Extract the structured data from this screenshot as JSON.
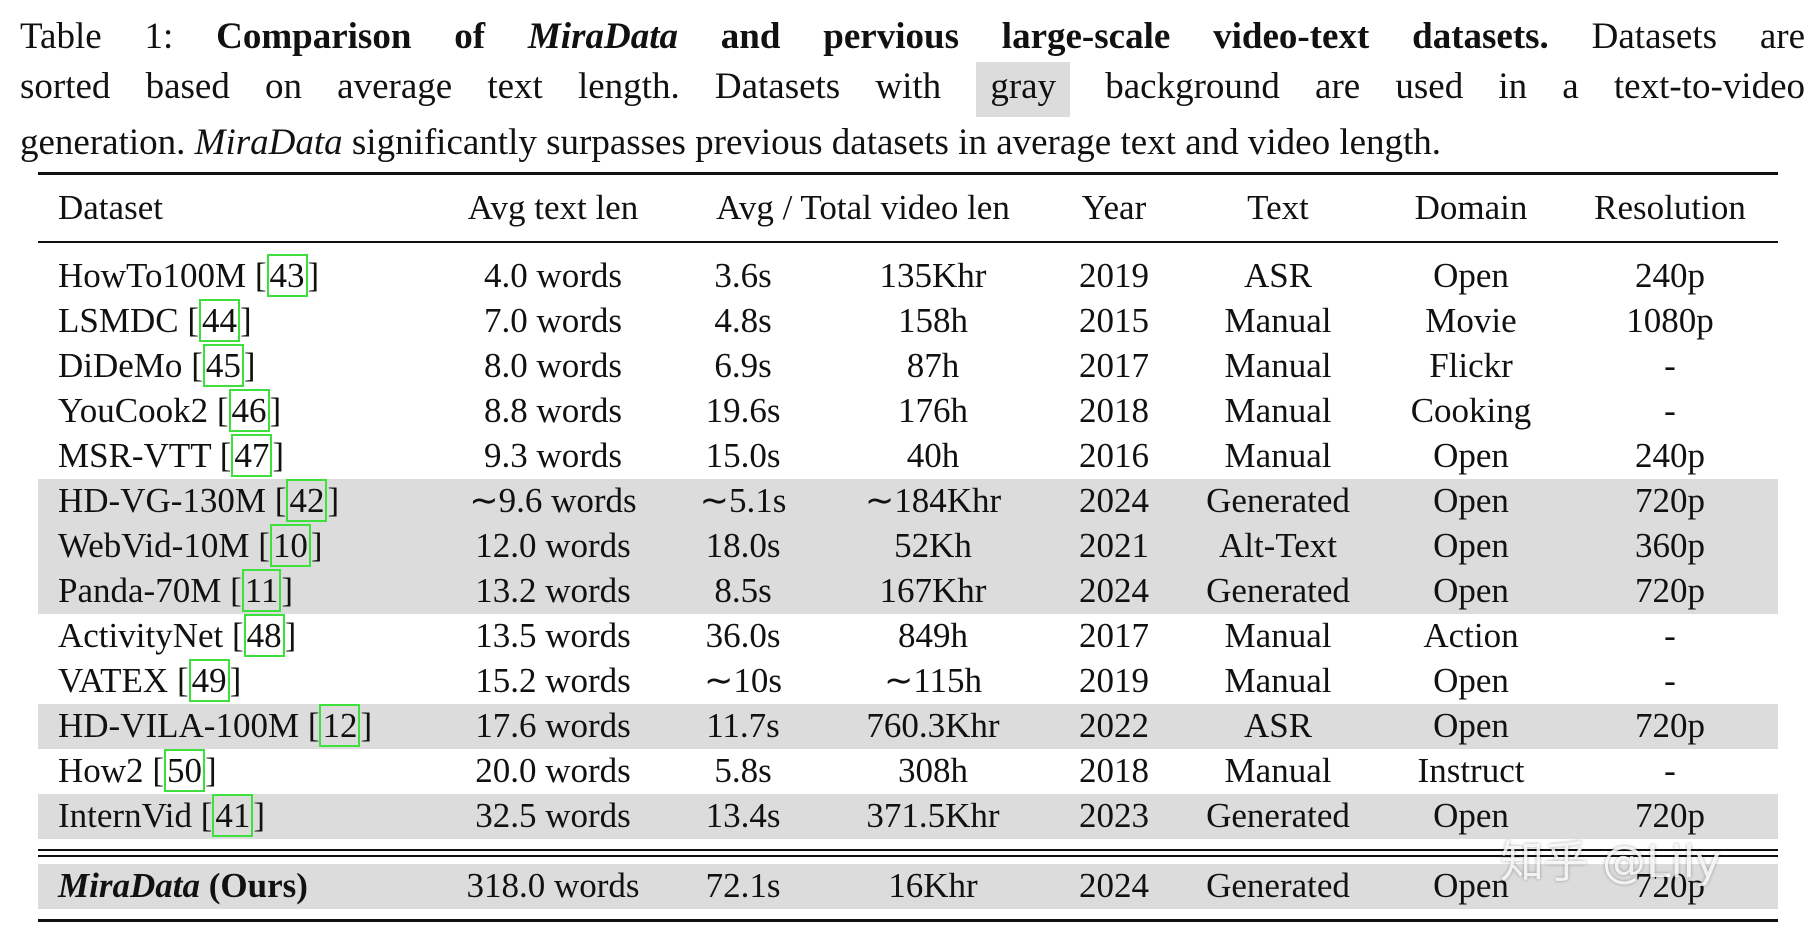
{
  "caption": {
    "lines": [
      [
        {
          "text": "Table 1: ",
          "style": "plain"
        },
        {
          "text": "Comparison of ",
          "style": "bold"
        },
        {
          "text": "MiraData",
          "style": "bold-italic"
        },
        {
          "text": " and pervious large-scale video-text datasets.",
          "style": "bold"
        },
        {
          "text": " Datasets are",
          "style": "plain"
        }
      ],
      [
        {
          "text": "sorted based on average text length. Datasets with ",
          "style": "plain"
        },
        {
          "text": "gray",
          "style": "highlight"
        },
        {
          "text": " background are used in a text-to-video",
          "style": "plain"
        }
      ],
      [
        {
          "text": "generation. ",
          "style": "plain"
        },
        {
          "text": "MiraData",
          "style": "italic"
        },
        {
          "text": " significantly surpasses previous datasets in average text and video length.",
          "style": "plain"
        }
      ]
    ]
  },
  "table": {
    "header": [
      "Dataset",
      "Avg text len",
      "Avg / Total video len",
      "Year",
      "Text",
      "Domain",
      "Resolution"
    ],
    "citation_brackets": [
      "[",
      "]"
    ],
    "rows": [
      {
        "name": "HowTo100M",
        "citation": "43",
        "avg_text": "4.0 words",
        "avg_video": "3.6s",
        "total_video": "135Khr",
        "year": "2019",
        "text": "ASR",
        "domain": "Open",
        "resolution": "240p",
        "gray": false
      },
      {
        "name": "LSMDC",
        "citation": "44",
        "avg_text": "7.0 words",
        "avg_video": "4.8s",
        "total_video": "158h",
        "year": "2015",
        "text": "Manual",
        "domain": "Movie",
        "resolution": "1080p",
        "gray": false
      },
      {
        "name": "DiDeMo",
        "citation": "45",
        "avg_text": "8.0 words",
        "avg_video": "6.9s",
        "total_video": "87h",
        "year": "2017",
        "text": "Manual",
        "domain": "Flickr",
        "resolution": "-",
        "gray": false
      },
      {
        "name": "YouCook2",
        "citation": "46",
        "avg_text": "8.8 words",
        "avg_video": "19.6s",
        "total_video": "176h",
        "year": "2018",
        "text": "Manual",
        "domain": "Cooking",
        "resolution": "-",
        "gray": false
      },
      {
        "name": "MSR-VTT",
        "citation": "47",
        "avg_text": "9.3 words",
        "avg_video": "15.0s",
        "total_video": "40h",
        "year": "2016",
        "text": "Manual",
        "domain": "Open",
        "resolution": "240p",
        "gray": false
      },
      {
        "name": "HD-VG-130M",
        "citation": "42",
        "avg_text": "∼9.6 words",
        "avg_video": "∼5.1s",
        "total_video": "∼184Khr",
        "year": "2024",
        "text": "Generated",
        "domain": "Open",
        "resolution": "720p",
        "gray": true
      },
      {
        "name": "WebVid-10M",
        "citation": "10",
        "avg_text": "12.0 words",
        "avg_video": "18.0s",
        "total_video": "52Kh",
        "year": "2021",
        "text": "Alt-Text",
        "domain": "Open",
        "resolution": "360p",
        "gray": true
      },
      {
        "name": "Panda-70M",
        "citation": "11",
        "avg_text": "13.2 words",
        "avg_video": "8.5s",
        "total_video": "167Khr",
        "year": "2024",
        "text": "Generated",
        "domain": "Open",
        "resolution": "720p",
        "gray": true
      },
      {
        "name": "ActivityNet",
        "citation": "48",
        "avg_text": "13.5 words",
        "avg_video": "36.0s",
        "total_video": "849h",
        "year": "2017",
        "text": "Manual",
        "domain": "Action",
        "resolution": "-",
        "gray": false
      },
      {
        "name": "VATEX",
        "citation": "49",
        "avg_text": "15.2 words",
        "avg_video": "∼10s",
        "total_video": "∼115h",
        "year": "2019",
        "text": "Manual",
        "domain": "Open",
        "resolution": "-",
        "gray": false
      },
      {
        "name": "HD-VILA-100M",
        "citation": "12",
        "avg_text": "17.6 words",
        "avg_video": "11.7s",
        "total_video": "760.3Khr",
        "year": "2022",
        "text": "ASR",
        "domain": "Open",
        "resolution": "720p",
        "gray": true
      },
      {
        "name": "How2",
        "citation": "50",
        "avg_text": "20.0 words",
        "avg_video": "5.8s",
        "total_video": "308h",
        "year": "2018",
        "text": "Manual",
        "domain": "Instruct",
        "resolution": "-",
        "gray": false
      },
      {
        "name": "InternVid",
        "citation": "41",
        "avg_text": "32.5 words",
        "avg_video": "13.4s",
        "total_video": "371.5Khr",
        "year": "2023",
        "text": "Generated",
        "domain": "Open",
        "resolution": "720p",
        "gray": true
      }
    ],
    "ours": {
      "name": "MiraData",
      "suffix": "(Ours)",
      "avg_text": "318.0 words",
      "avg_video": "72.1s",
      "total_video": "16Khr",
      "year": "2024",
      "text": "Generated",
      "domain": "Open",
      "resolution": "720p",
      "gray": true
    }
  },
  "watermark": "知乎 @Lily"
}
